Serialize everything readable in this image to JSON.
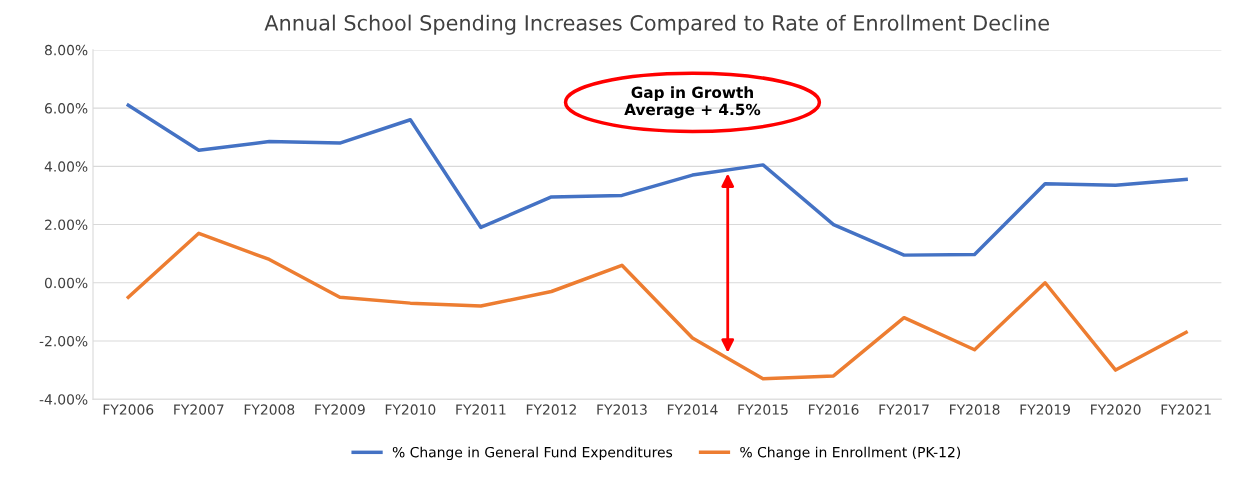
{
  "chart_data": {
    "type": "line",
    "title": "Annual School Spending Increases Compared to Rate of Enrollment Decline",
    "categories": [
      "FY2006",
      "FY2007",
      "FY2008",
      "FY2009",
      "FY2010",
      "FY2011",
      "FY2012",
      "FY2013",
      "FY2014",
      "FY2015",
      "FY2016",
      "FY2017",
      "FY2018",
      "FY2019",
      "FY2020",
      "FY2021"
    ],
    "series": [
      {
        "name": "% Change in General Fund Expenditures",
        "color": "#4472c4",
        "values": [
          6.1,
          4.55,
          4.85,
          4.8,
          5.6,
          1.9,
          2.95,
          3.0,
          3.7,
          4.05,
          2.0,
          0.95,
          0.97,
          3.4,
          3.35,
          3.55
        ]
      },
      {
        "name": "% Change in Enrollment (PK-12)",
        "color": "#ed7d31",
        "values": [
          -0.5,
          1.7,
          0.8,
          -0.5,
          -0.7,
          -0.8,
          -0.3,
          0.6,
          -1.9,
          -3.3,
          -3.2,
          -1.2,
          -2.3,
          0.0,
          -3.0,
          -1.7
        ]
      }
    ],
    "ylim": [
      -4,
      8
    ],
    "yticks": [
      {
        "value": -4,
        "label": "-4.00%"
      },
      {
        "value": -2,
        "label": "-2.00%"
      },
      {
        "value": 0,
        "label": "0.00%"
      },
      {
        "value": 2,
        "label": "2.00%"
      },
      {
        "value": 4,
        "label": "4.00%"
      },
      {
        "value": 6,
        "label": "6.00%"
      },
      {
        "value": 8,
        "label": "8.00%"
      }
    ],
    "grid": "y",
    "legend": "bottom",
    "marker": "none",
    "line_style": "solid",
    "annotations": [
      "Gap in Growth\nAverage + 4.5%"
    ]
  }
}
